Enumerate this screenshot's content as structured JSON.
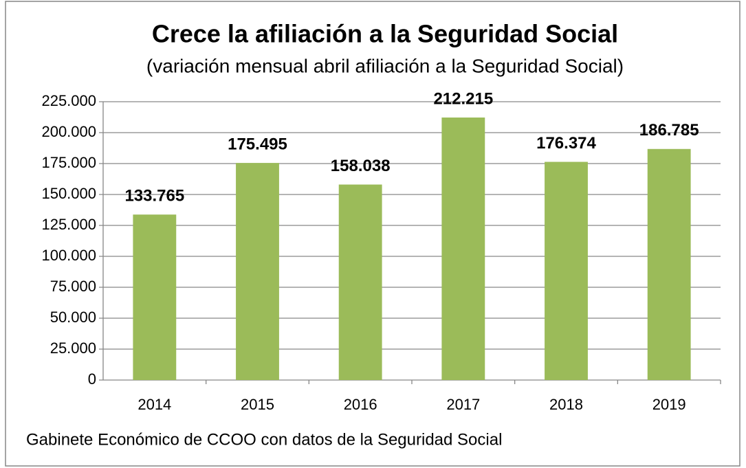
{
  "chart_data": {
    "type": "bar",
    "title": "Crece la afiliación a la Seguridad Social",
    "subtitle": "(variación mensual abril afiliación a la Seguridad Social)",
    "source": "Gabinete Económico de CCOO con datos de la Seguridad Social",
    "categories": [
      "2014",
      "2015",
      "2016",
      "2017",
      "2018",
      "2019"
    ],
    "values": [
      133765,
      175495,
      158038,
      212215,
      176374,
      186785
    ],
    "value_labels": [
      "133.765",
      "175.495",
      "158.038",
      "212.215",
      "176.374",
      "186.785"
    ],
    "color": "#9bbb59",
    "ylim": [
      0,
      225000
    ],
    "yticks": [
      0,
      {
        "value": 25000,
        "label": "25.000"
      },
      {
        "value": 50000,
        "label": "50.000"
      },
      {
        "value": 75000,
        "label": "75.000"
      },
      {
        "value": 100000,
        "label": "100.000"
      },
      {
        "value": 125000,
        "label": "125.000"
      },
      {
        "value": 150000,
        "label": "150.000"
      },
      {
        "value": 175000,
        "label": "175.000"
      },
      {
        "value": 200000,
        "label": "200.000"
      },
      {
        "value": 225000,
        "label": "225.000"
      }
    ],
    "grid": true
  }
}
